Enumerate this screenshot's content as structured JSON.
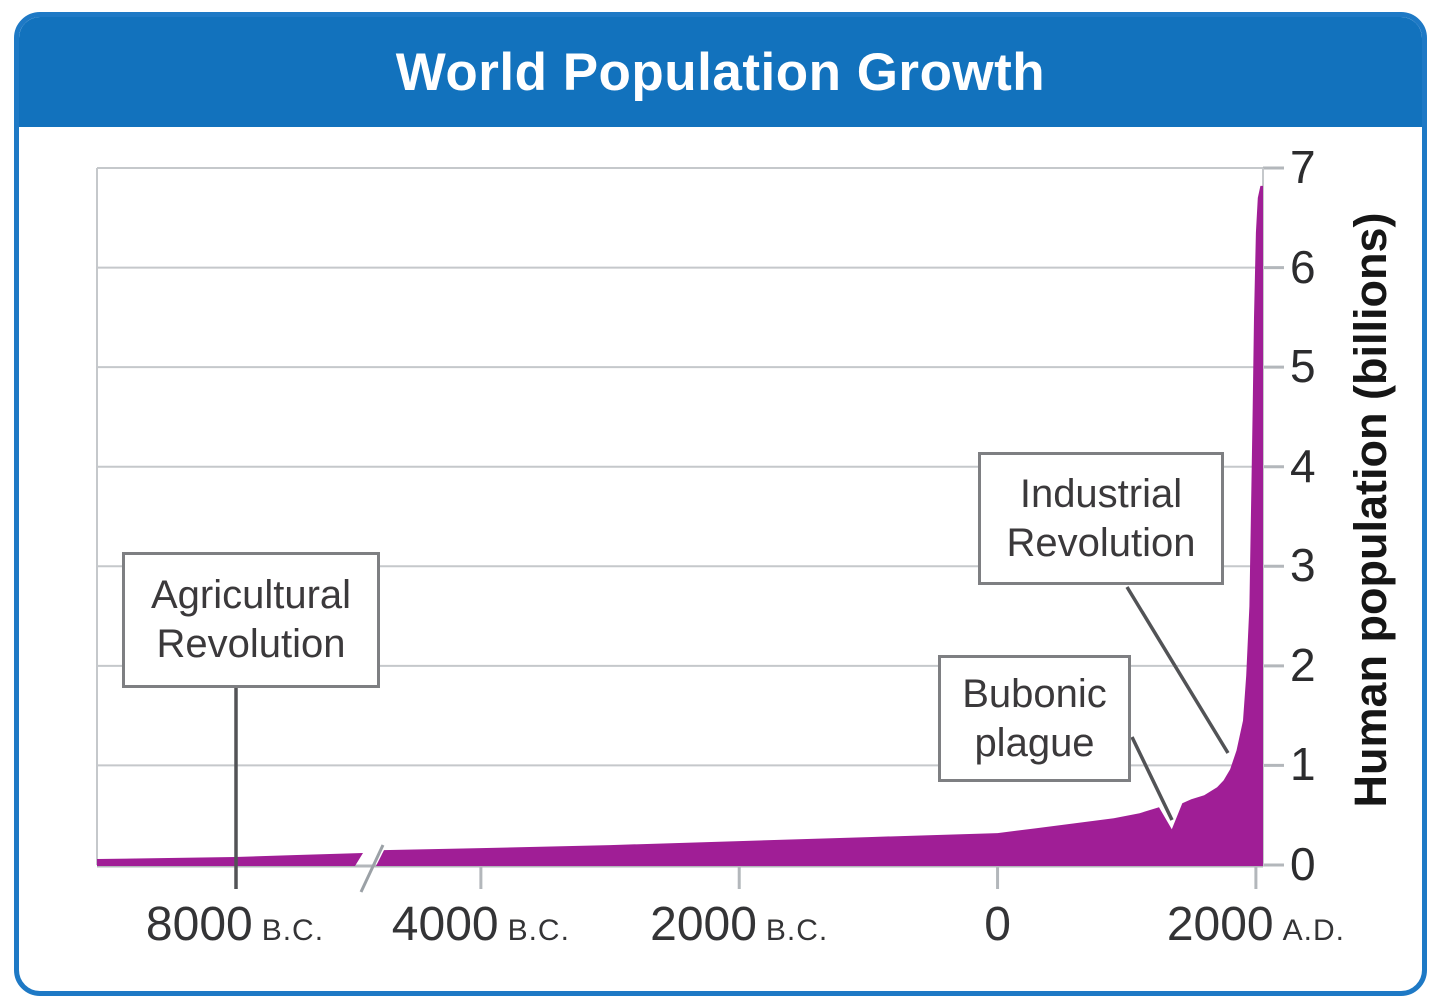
{
  "card": {
    "header_color": "#1272bd",
    "border_color": "#1e79c5"
  },
  "chart_data": {
    "type": "area",
    "title": "World Population Growth",
    "ylabel": "Human population (billions)",
    "xlabel": "",
    "ylim": [
      0,
      7
    ],
    "grid": true,
    "legend": "none",
    "y_ticks": [
      7,
      6,
      5,
      4,
      3,
      2,
      1,
      0
    ],
    "x_ticks": [
      {
        "year": -8000,
        "label": "8000",
        "era": "B.C."
      },
      {
        "year": -4000,
        "label": "4000",
        "era": "B.C."
      },
      {
        "year": -2000,
        "label": "2000",
        "era": "B.C."
      },
      {
        "year": 0,
        "label": "0",
        "era": ""
      },
      {
        "year": 2000,
        "label": "2000",
        "era": "A.D."
      }
    ],
    "axis_break": {
      "after_year": -4900,
      "resume_year": -4750
    },
    "series": [
      {
        "name": "Human population",
        "color": "#a01e96",
        "points_before_break": [
          [
            -9000,
            0.06
          ],
          [
            -8000,
            0.08
          ],
          [
            -6500,
            0.1
          ],
          [
            -4900,
            0.12
          ]
        ],
        "points": [
          [
            -4750,
            0.15
          ],
          [
            -4000,
            0.17
          ],
          [
            -3000,
            0.2
          ],
          [
            -2000,
            0.24
          ],
          [
            -1000,
            0.28
          ],
          [
            -500,
            0.3
          ],
          [
            0,
            0.32
          ],
          [
            300,
            0.37
          ],
          [
            600,
            0.42
          ],
          [
            900,
            0.47
          ],
          [
            1100,
            0.52
          ],
          [
            1250,
            0.58
          ],
          [
            1349,
            0.36
          ],
          [
            1430,
            0.62
          ],
          [
            1500,
            0.66
          ],
          [
            1600,
            0.7
          ],
          [
            1700,
            0.78
          ],
          [
            1750,
            0.85
          ],
          [
            1800,
            0.96
          ],
          [
            1850,
            1.15
          ],
          [
            1900,
            1.45
          ],
          [
            1925,
            1.9
          ],
          [
            1950,
            2.6
          ],
          [
            1965,
            3.8
          ],
          [
            1975,
            4.6
          ],
          [
            1985,
            5.5
          ],
          [
            2000,
            6.35
          ],
          [
            2015,
            6.7
          ],
          [
            2035,
            6.82
          ],
          [
            2055,
            6.82
          ]
        ]
      }
    ],
    "annotations": [
      {
        "label": "Agricultural\nRevolution",
        "target_year": -8000
      },
      {
        "label": "Industrial\nRevolution",
        "target_year": 1800
      },
      {
        "label": "Bubonic\nplague",
        "target_year": 1349
      }
    ]
  }
}
